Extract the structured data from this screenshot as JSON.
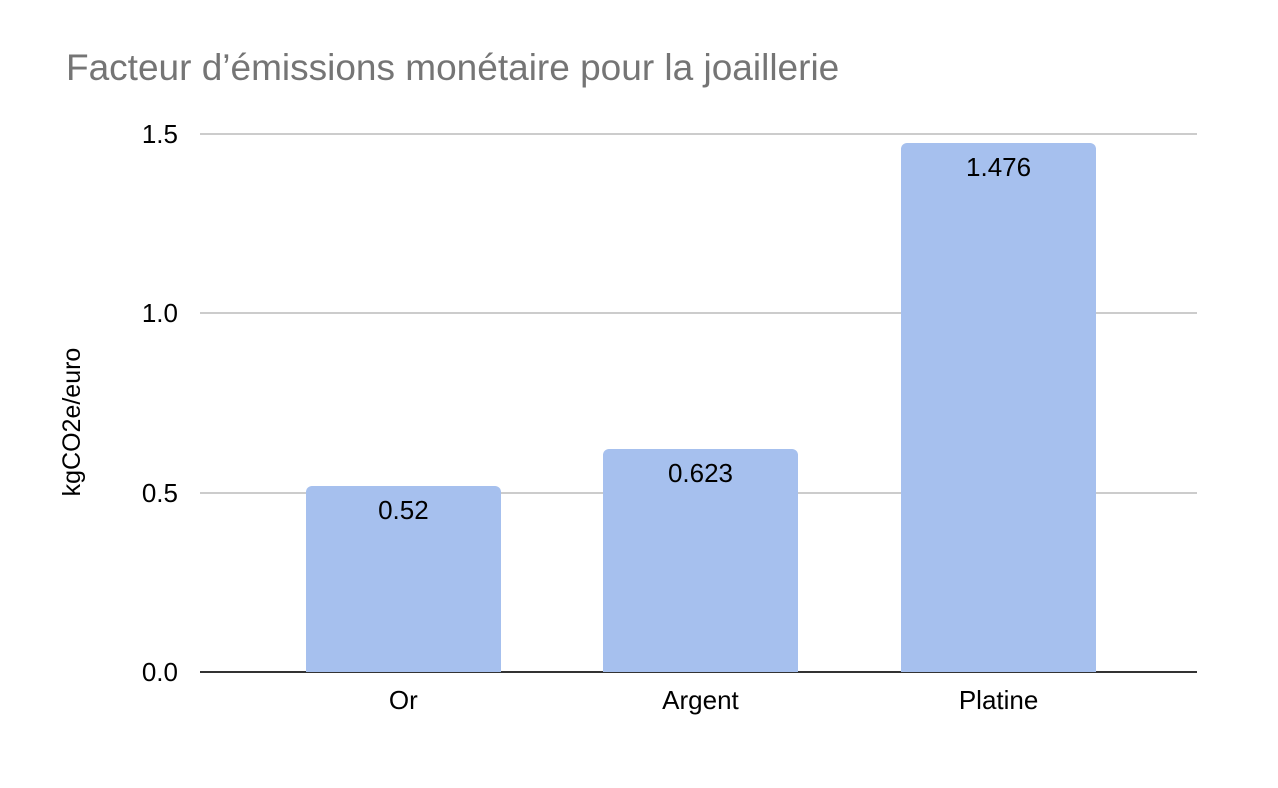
{
  "chart_data": {
    "type": "bar",
    "title": "Facteur d’émissions monétaire pour la joaillerie",
    "xlabel": "",
    "ylabel": "kgCO2e/euro",
    "categories": [
      "Or",
      "Argent",
      "Platine"
    ],
    "values": [
      0.52,
      0.623,
      1.476
    ],
    "data_labels": [
      "0.52",
      "0.623",
      "1.476"
    ],
    "yticks": [
      0.0,
      0.5,
      1.0,
      1.5
    ],
    "ytick_labels": [
      "0.0",
      "0.5",
      "1.0",
      "1.5"
    ],
    "ylim": [
      0,
      1.5
    ],
    "grid": true,
    "legend": "none",
    "colors": {
      "bar_fill": "#a6c0ee",
      "gridline": "#cccccc",
      "axis_line": "#333333",
      "title_text": "#757575",
      "label_text": "#000000",
      "background": "#ffffff"
    }
  }
}
